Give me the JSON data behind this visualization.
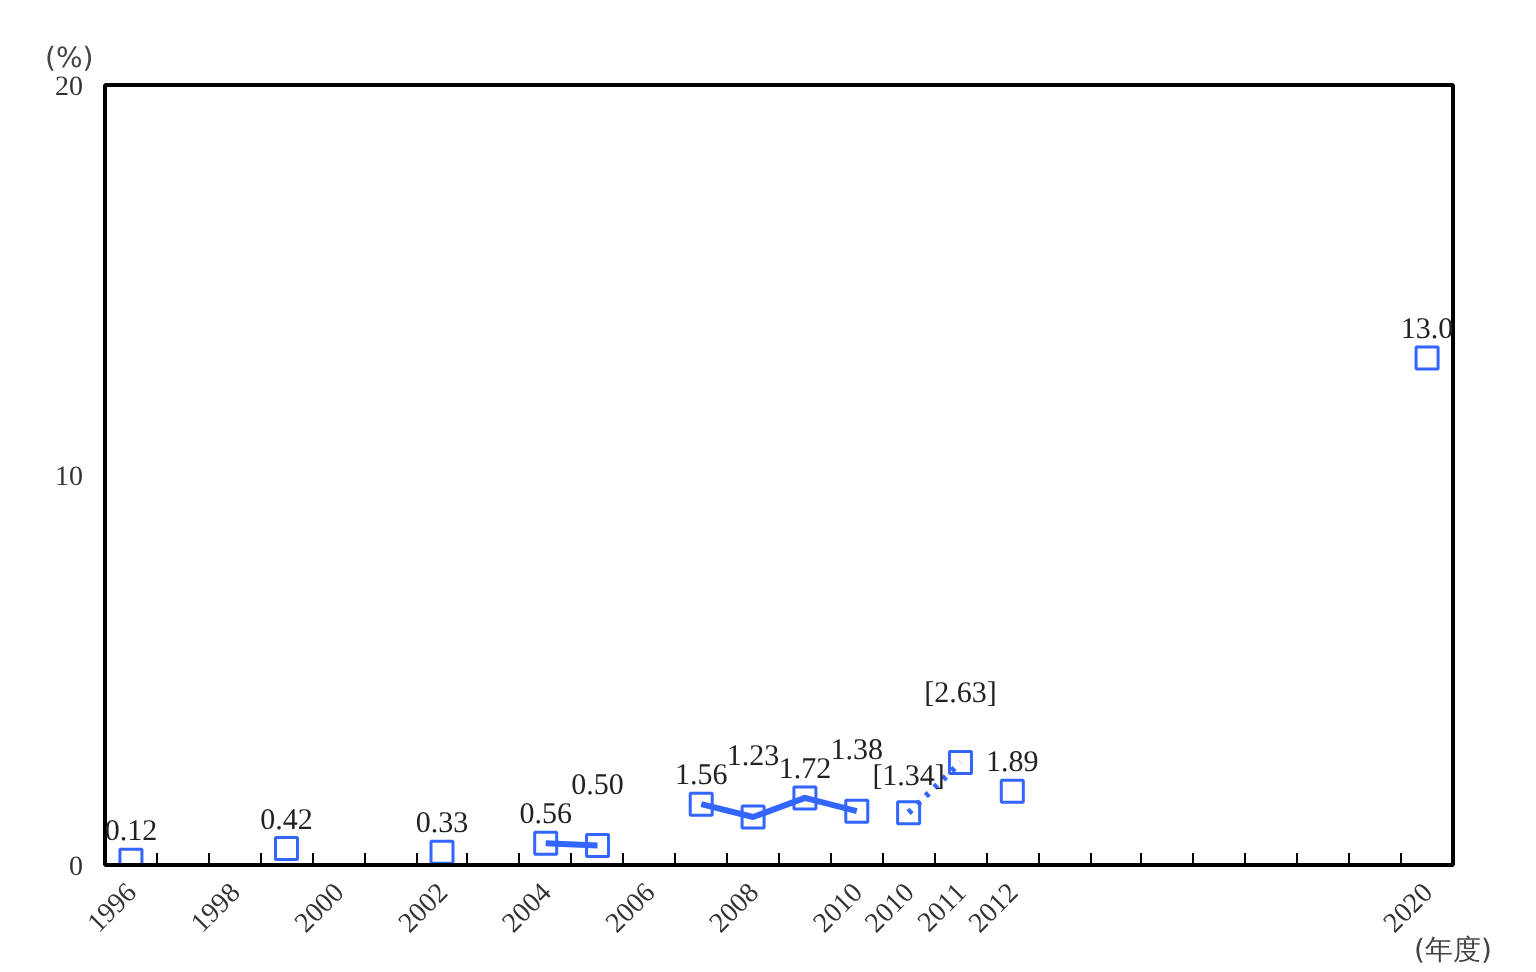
{
  "chart_data": {
    "type": "scatter",
    "xlabel": "(年度)",
    "ylabel": "(%)",
    "categories": [
      "1996",
      null,
      "1998",
      null,
      "2000",
      null,
      "2002",
      null,
      "2004",
      null,
      "2006",
      null,
      "2008",
      null,
      "2010",
      "2010",
      "2011",
      "2012",
      null,
      null,
      null,
      null,
      null,
      null,
      null,
      "2020"
    ],
    "ylim": [
      0,
      20
    ],
    "yticks": [
      0,
      10,
      20
    ],
    "grid": false,
    "series": [
      {
        "color": "#3366ff",
        "marker": "square",
        "values": [
          0.12,
          null,
          null,
          0.42,
          null,
          null,
          0.33,
          null,
          0.56,
          0.5,
          null,
          1.56,
          1.23,
          1.72,
          1.38,
          1.34,
          2.63,
          1.89,
          null,
          null,
          null,
          null,
          null,
          null,
          null,
          13.0
        ],
        "value_labels": [
          "0.12",
          null,
          null,
          "0.42",
          null,
          null,
          "0.33",
          null,
          "0.56",
          "0.50",
          null,
          "1.56",
          "1.23",
          "1.72",
          "1.38",
          "[1.34]",
          "[2.63]",
          "1.89",
          null,
          null,
          null,
          null,
          null,
          null,
          null,
          "13.0"
        ]
      },
      {
        "type": "line",
        "color": "#3366ff",
        "line_style": "solid",
        "marker": "none",
        "values": [
          null,
          null,
          null,
          null,
          null,
          null,
          null,
          null,
          0.56,
          0.5,
          null,
          1.56,
          1.23,
          1.72,
          1.38,
          null,
          null,
          null,
          null,
          null,
          null,
          null,
          null,
          null,
          null,
          null
        ]
      },
      {
        "type": "line",
        "color": "#3366ff",
        "line_style": "dotted",
        "marker": "none",
        "values": [
          null,
          null,
          null,
          null,
          null,
          null,
          null,
          null,
          null,
          null,
          null,
          null,
          null,
          null,
          null,
          1.34,
          2.63,
          null,
          null,
          null,
          null,
          null,
          null,
          null,
          null,
          null
        ]
      }
    ]
  }
}
